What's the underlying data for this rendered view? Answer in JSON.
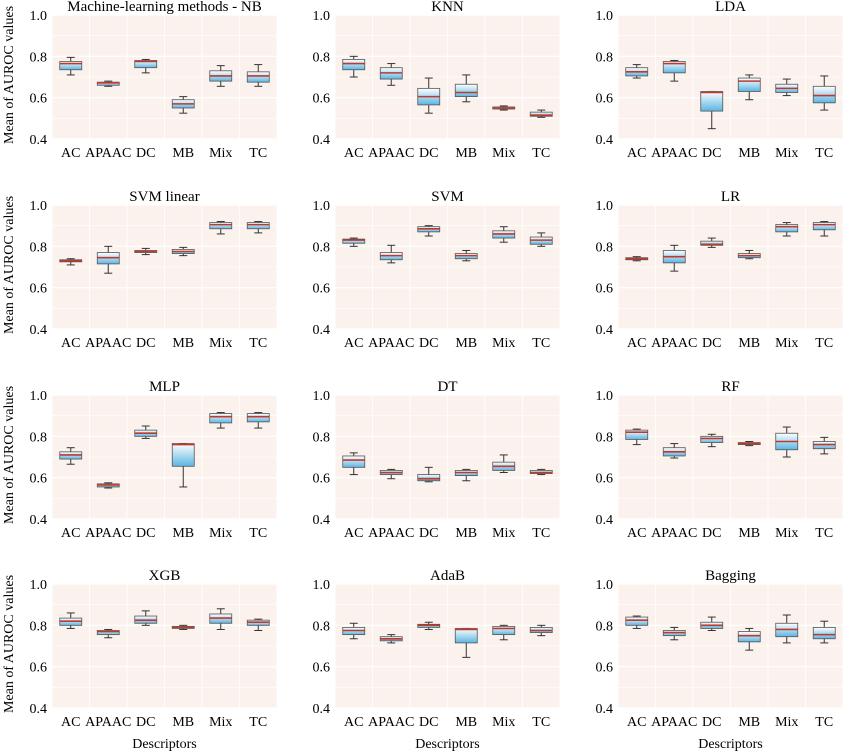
{
  "colors": {
    "plot_bg": "#fbf2ee",
    "grid": "#ffffff",
    "box_fill_top": "#ffffff",
    "box_fill_bottom": "#5bb5e3",
    "median": "#c0392b",
    "whisker": "#333333"
  },
  "chart_data": {
    "type": "box",
    "ylabel": "Mean of AUROC values",
    "xlabel": "Descriptors",
    "categories": [
      "AC",
      "APAAC",
      "DC",
      "MB",
      "Mix",
      "TC"
    ],
    "grid": true,
    "panels": [
      {
        "title": "Machine-learning methods - NB",
        "ylim": [
          0.4,
          1.0
        ],
        "yticks": [
          "0.4",
          "0.6",
          "0.8",
          "1.0"
        ],
        "boxes": [
          {
            "min": 0.71,
            "q1": 0.735,
            "median": 0.765,
            "q3": 0.775,
            "max": 0.795
          },
          {
            "min": 0.655,
            "q1": 0.66,
            "median": 0.672,
            "q3": 0.675,
            "max": 0.68
          },
          {
            "min": 0.72,
            "q1": 0.745,
            "median": 0.775,
            "q3": 0.78,
            "max": 0.785
          },
          {
            "min": 0.525,
            "q1": 0.55,
            "median": 0.57,
            "q3": 0.59,
            "max": 0.605
          },
          {
            "min": 0.655,
            "q1": 0.68,
            "median": 0.705,
            "q3": 0.73,
            "max": 0.755
          },
          {
            "min": 0.655,
            "q1": 0.675,
            "median": 0.705,
            "q3": 0.725,
            "max": 0.76
          }
        ]
      },
      {
        "title": "KNN",
        "ylim": [
          0.4,
          1.0
        ],
        "yticks": [
          "0.4",
          "0.6",
          "0.8",
          "1.0"
        ],
        "boxes": [
          {
            "min": 0.7,
            "q1": 0.735,
            "median": 0.765,
            "q3": 0.785,
            "max": 0.8
          },
          {
            "min": 0.66,
            "q1": 0.69,
            "median": 0.72,
            "q3": 0.745,
            "max": 0.765
          },
          {
            "min": 0.525,
            "q1": 0.565,
            "median": 0.605,
            "q3": 0.645,
            "max": 0.695
          },
          {
            "min": 0.58,
            "q1": 0.605,
            "median": 0.625,
            "q3": 0.665,
            "max": 0.71
          },
          {
            "min": 0.54,
            "q1": 0.545,
            "median": 0.55,
            "q3": 0.555,
            "max": 0.56
          },
          {
            "min": 0.505,
            "q1": 0.51,
            "median": 0.515,
            "q3": 0.53,
            "max": 0.54
          }
        ]
      },
      {
        "title": "LDA",
        "ylim": [
          0.4,
          1.0
        ],
        "yticks": [
          "0.4",
          "0.6",
          "0.8",
          "1.0"
        ],
        "boxes": [
          {
            "min": 0.695,
            "q1": 0.705,
            "median": 0.725,
            "q3": 0.745,
            "max": 0.76
          },
          {
            "min": 0.68,
            "q1": 0.72,
            "median": 0.765,
            "q3": 0.775,
            "max": 0.78
          },
          {
            "min": 0.45,
            "q1": 0.535,
            "median": 0.625,
            "q3": 0.63,
            "max": 0.63
          },
          {
            "min": 0.59,
            "q1": 0.63,
            "median": 0.68,
            "q3": 0.695,
            "max": 0.71
          },
          {
            "min": 0.61,
            "q1": 0.625,
            "median": 0.645,
            "q3": 0.665,
            "max": 0.69
          },
          {
            "min": 0.54,
            "q1": 0.575,
            "median": 0.61,
            "q3": 0.655,
            "max": 0.705
          }
        ]
      },
      {
        "title": "SVM linear",
        "ylim": [
          0.4,
          1.0
        ],
        "yticks": [
          "0.4",
          "0.6",
          "0.8",
          "1.0"
        ],
        "boxes": [
          {
            "min": 0.71,
            "q1": 0.725,
            "median": 0.73,
            "q3": 0.735,
            "max": 0.74
          },
          {
            "min": 0.67,
            "q1": 0.715,
            "median": 0.745,
            "q3": 0.77,
            "max": 0.8
          },
          {
            "min": 0.76,
            "q1": 0.77,
            "median": 0.775,
            "q3": 0.78,
            "max": 0.79
          },
          {
            "min": 0.755,
            "q1": 0.765,
            "median": 0.775,
            "q3": 0.785,
            "max": 0.795
          },
          {
            "min": 0.86,
            "q1": 0.885,
            "median": 0.905,
            "q3": 0.915,
            "max": 0.92
          },
          {
            "min": 0.865,
            "q1": 0.885,
            "median": 0.905,
            "q3": 0.915,
            "max": 0.92
          }
        ]
      },
      {
        "title": "SVM",
        "ylim": [
          0.4,
          1.0
        ],
        "yticks": [
          "0.4",
          "0.6",
          "0.8",
          "1.0"
        ],
        "boxes": [
          {
            "min": 0.8,
            "q1": 0.815,
            "median": 0.83,
            "q3": 0.835,
            "max": 0.84
          },
          {
            "min": 0.72,
            "q1": 0.735,
            "median": 0.755,
            "q3": 0.77,
            "max": 0.805
          },
          {
            "min": 0.85,
            "q1": 0.87,
            "median": 0.885,
            "q3": 0.895,
            "max": 0.9
          },
          {
            "min": 0.73,
            "q1": 0.74,
            "median": 0.755,
            "q3": 0.765,
            "max": 0.78
          },
          {
            "min": 0.82,
            "q1": 0.84,
            "median": 0.86,
            "q3": 0.875,
            "max": 0.895
          },
          {
            "min": 0.8,
            "q1": 0.81,
            "median": 0.83,
            "q3": 0.845,
            "max": 0.865
          }
        ]
      },
      {
        "title": "LR",
        "ylim": [
          0.4,
          1.0
        ],
        "yticks": [
          "0.4",
          "0.6",
          "0.8",
          "1.0"
        ],
        "boxes": [
          {
            "min": 0.73,
            "q1": 0.735,
            "median": 0.74,
            "q3": 0.745,
            "max": 0.75
          },
          {
            "min": 0.68,
            "q1": 0.72,
            "median": 0.75,
            "q3": 0.78,
            "max": 0.805
          },
          {
            "min": 0.795,
            "q1": 0.805,
            "median": 0.81,
            "q3": 0.825,
            "max": 0.84
          },
          {
            "min": 0.74,
            "q1": 0.745,
            "median": 0.755,
            "q3": 0.765,
            "max": 0.78
          },
          {
            "min": 0.85,
            "q1": 0.87,
            "median": 0.895,
            "q3": 0.905,
            "max": 0.915
          },
          {
            "min": 0.85,
            "q1": 0.88,
            "median": 0.905,
            "q3": 0.915,
            "max": 0.92
          }
        ]
      },
      {
        "title": "MLP",
        "ylim": [
          0.4,
          1.0
        ],
        "yticks": [
          "0.4",
          "0.6",
          "0.8",
          "1.0"
        ],
        "boxes": [
          {
            "min": 0.665,
            "q1": 0.69,
            "median": 0.71,
            "q3": 0.725,
            "max": 0.745
          },
          {
            "min": 0.55,
            "q1": 0.555,
            "median": 0.565,
            "q3": 0.57,
            "max": 0.575
          },
          {
            "min": 0.79,
            "q1": 0.8,
            "median": 0.815,
            "q3": 0.83,
            "max": 0.85
          },
          {
            "min": 0.555,
            "q1": 0.655,
            "median": 0.76,
            "q3": 0.765,
            "max": 0.765
          },
          {
            "min": 0.84,
            "q1": 0.865,
            "median": 0.895,
            "q3": 0.91,
            "max": 0.915
          },
          {
            "min": 0.84,
            "q1": 0.87,
            "median": 0.895,
            "q3": 0.91,
            "max": 0.915
          }
        ]
      },
      {
        "title": "DT",
        "ylim": [
          0.4,
          1.0
        ],
        "yticks": [
          "0.4",
          "0.6",
          "0.8",
          "1.0"
        ],
        "boxes": [
          {
            "min": 0.615,
            "q1": 0.65,
            "median": 0.685,
            "q3": 0.705,
            "max": 0.72
          },
          {
            "min": 0.595,
            "q1": 0.615,
            "median": 0.625,
            "q3": 0.635,
            "max": 0.64
          },
          {
            "min": 0.58,
            "q1": 0.585,
            "median": 0.595,
            "q3": 0.615,
            "max": 0.65
          },
          {
            "min": 0.585,
            "q1": 0.61,
            "median": 0.625,
            "q3": 0.635,
            "max": 0.64
          },
          {
            "min": 0.625,
            "q1": 0.635,
            "median": 0.655,
            "q3": 0.675,
            "max": 0.71
          },
          {
            "min": 0.615,
            "q1": 0.62,
            "median": 0.625,
            "q3": 0.635,
            "max": 0.64
          }
        ]
      },
      {
        "title": "RF",
        "ylim": [
          0.4,
          1.0
        ],
        "yticks": [
          "0.4",
          "0.6",
          "0.8",
          "1.0"
        ],
        "boxes": [
          {
            "min": 0.76,
            "q1": 0.785,
            "median": 0.82,
            "q3": 0.83,
            "max": 0.835
          },
          {
            "min": 0.695,
            "q1": 0.705,
            "median": 0.725,
            "q3": 0.745,
            "max": 0.765
          },
          {
            "min": 0.75,
            "q1": 0.77,
            "median": 0.79,
            "q3": 0.8,
            "max": 0.81
          },
          {
            "min": 0.755,
            "q1": 0.76,
            "median": 0.765,
            "q3": 0.77,
            "max": 0.775
          },
          {
            "min": 0.7,
            "q1": 0.735,
            "median": 0.775,
            "q3": 0.815,
            "max": 0.845
          },
          {
            "min": 0.715,
            "q1": 0.74,
            "median": 0.76,
            "q3": 0.775,
            "max": 0.795
          }
        ]
      },
      {
        "title": "XGB",
        "ylim": [
          0.4,
          1.0
        ],
        "yticks": [
          "0.4",
          "0.6",
          "0.8",
          "1.0"
        ],
        "boxes": [
          {
            "min": 0.785,
            "q1": 0.8,
            "median": 0.82,
            "q3": 0.835,
            "max": 0.86
          },
          {
            "min": 0.74,
            "q1": 0.755,
            "median": 0.77,
            "q3": 0.775,
            "max": 0.78
          },
          {
            "min": 0.8,
            "q1": 0.81,
            "median": 0.825,
            "q3": 0.845,
            "max": 0.87
          },
          {
            "min": 0.78,
            "q1": 0.785,
            "median": 0.79,
            "q3": 0.795,
            "max": 0.8
          },
          {
            "min": 0.78,
            "q1": 0.81,
            "median": 0.835,
            "q3": 0.855,
            "max": 0.88
          },
          {
            "min": 0.775,
            "q1": 0.8,
            "median": 0.815,
            "q3": 0.825,
            "max": 0.83
          }
        ]
      },
      {
        "title": "AdaB",
        "ylim": [
          0.4,
          1.0
        ],
        "yticks": [
          "0.4",
          "0.6",
          "0.8",
          "1.0"
        ],
        "boxes": [
          {
            "min": 0.735,
            "q1": 0.755,
            "median": 0.775,
            "q3": 0.79,
            "max": 0.81
          },
          {
            "min": 0.715,
            "q1": 0.725,
            "median": 0.735,
            "q3": 0.745,
            "max": 0.755
          },
          {
            "min": 0.78,
            "q1": 0.79,
            "median": 0.8,
            "q3": 0.805,
            "max": 0.815
          },
          {
            "min": 0.645,
            "q1": 0.715,
            "median": 0.78,
            "q3": 0.785,
            "max": 0.785
          },
          {
            "min": 0.73,
            "q1": 0.755,
            "median": 0.785,
            "q3": 0.795,
            "max": 0.8
          },
          {
            "min": 0.75,
            "q1": 0.765,
            "median": 0.775,
            "q3": 0.79,
            "max": 0.8
          }
        ]
      },
      {
        "title": "Bagging",
        "ylim": [
          0.4,
          1.0
        ],
        "yticks": [
          "0.4",
          "0.6",
          "0.8",
          "1.0"
        ],
        "boxes": [
          {
            "min": 0.785,
            "q1": 0.8,
            "median": 0.825,
            "q3": 0.84,
            "max": 0.845
          },
          {
            "min": 0.73,
            "q1": 0.75,
            "median": 0.765,
            "q3": 0.775,
            "max": 0.79
          },
          {
            "min": 0.775,
            "q1": 0.785,
            "median": 0.8,
            "q3": 0.815,
            "max": 0.84
          },
          {
            "min": 0.68,
            "q1": 0.72,
            "median": 0.75,
            "q3": 0.77,
            "max": 0.785
          },
          {
            "min": 0.715,
            "q1": 0.745,
            "median": 0.78,
            "q3": 0.81,
            "max": 0.85
          },
          {
            "min": 0.715,
            "q1": 0.735,
            "median": 0.755,
            "q3": 0.79,
            "max": 0.82
          }
        ]
      }
    ]
  }
}
